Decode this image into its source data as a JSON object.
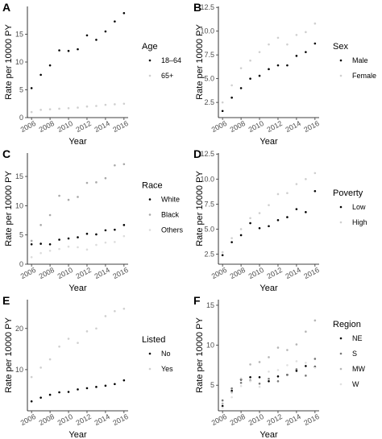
{
  "chart_data": [
    {
      "type": "scatter",
      "panel_label": "A",
      "xlabel": "Year",
      "ylabel": "Rate per 10000 PY",
      "x": [
        2006,
        2007,
        2008,
        2009,
        2010,
        2011,
        2012,
        2013,
        2014,
        2015,
        2016
      ],
      "xticks": [
        2006,
        2008,
        2010,
        2012,
        2014,
        2016
      ],
      "ylim": [
        0,
        20
      ],
      "yticks": [
        0,
        5,
        10,
        15
      ],
      "legend_title": "Age",
      "series": [
        {
          "name": "18–64",
          "color": "#000000",
          "values": [
            5.3,
            7.7,
            9.4,
            12.1,
            12.0,
            12.3,
            14.8,
            14.0,
            15.5,
            17.3,
            18.8
          ]
        },
        {
          "name": "65+",
          "color": "#cfcfcf",
          "values": [
            1.0,
            1.4,
            1.5,
            1.6,
            1.7,
            1.8,
            2.0,
            2.1,
            2.3,
            2.4,
            2.5
          ]
        }
      ]
    },
    {
      "type": "scatter",
      "panel_label": "B",
      "xlabel": "Year",
      "ylabel": "Rate per 10000 PY",
      "x": [
        2006,
        2007,
        2008,
        2009,
        2010,
        2011,
        2012,
        2013,
        2014,
        2015,
        2016
      ],
      "xticks": [
        2006,
        2008,
        2010,
        2012,
        2014,
        2016
      ],
      "ylim": [
        0.9,
        12.6
      ],
      "yticks": [
        2.5,
        5.0,
        7.5,
        10.0,
        12.5
      ],
      "legend_title": "Sex",
      "series": [
        {
          "name": "Male",
          "color": "#000000",
          "values": [
            1.6,
            3.0,
            4.0,
            5.0,
            5.3,
            6.0,
            6.4,
            6.4,
            7.4,
            7.8,
            8.7
          ]
        },
        {
          "name": "Female",
          "color": "#cfcfcf",
          "values": [
            2.5,
            4.3,
            6.1,
            6.9,
            7.8,
            8.6,
            9.3,
            8.6,
            9.6,
            9.9,
            10.8
          ]
        }
      ]
    },
    {
      "type": "scatter",
      "panel_label": "C",
      "xlabel": "Year",
      "ylabel": "Rate per 10000 PY",
      "x": [
        2006,
        2007,
        2008,
        2009,
        2010,
        2011,
        2012,
        2013,
        2014,
        2015,
        2016
      ],
      "xticks": [
        2006,
        2008,
        2010,
        2012,
        2014,
        2016
      ],
      "ylim": [
        0,
        19
      ],
      "yticks": [
        0,
        5,
        10,
        15
      ],
      "legend_title": "Race",
      "series": [
        {
          "name": "White",
          "color": "#000000",
          "values": [
            3.4,
            3.5,
            3.4,
            4.2,
            4.4,
            4.6,
            5.2,
            5.1,
            5.8,
            5.9,
            6.7
          ]
        },
        {
          "name": "Black",
          "color": "#a8a8a8",
          "values": [
            4.0,
            6.7,
            8.4,
            11.7,
            11.0,
            11.5,
            13.9,
            14.0,
            14.7,
            16.9,
            17.1
          ]
        },
        {
          "name": "Others",
          "color": "#dcdcdc",
          "values": [
            1.2,
            1.9,
            2.3,
            2.6,
            3.0,
            2.9,
            2.5,
            3.3,
            3.7,
            3.8,
            4.8
          ]
        }
      ]
    },
    {
      "type": "scatter",
      "panel_label": "D",
      "xlabel": "Year",
      "ylabel": "Rate per 10000 PY",
      "x": [
        2006,
        2007,
        2008,
        2009,
        2010,
        2011,
        2012,
        2013,
        2014,
        2015,
        2016
      ],
      "xticks": [
        2006,
        2008,
        2010,
        2012,
        2014,
        2016
      ],
      "ylim": [
        1.5,
        12.6
      ],
      "yticks": [
        2.5,
        5.0,
        7.5,
        10.0,
        12.5
      ],
      "legend_title": "Poverty",
      "series": [
        {
          "name": "Low",
          "color": "#000000",
          "values": [
            2.4,
            3.7,
            4.4,
            5.6,
            5.1,
            5.3,
            5.9,
            6.2,
            7.0,
            6.7,
            8.8
          ]
        },
        {
          "name": "High",
          "color": "#cfcfcf",
          "values": [
            2.7,
            4.1,
            5.0,
            6.1,
            6.6,
            7.4,
            8.5,
            8.6,
            9.5,
            10.0,
            10.6
          ]
        }
      ]
    },
    {
      "type": "scatter",
      "panel_label": "E",
      "xlabel": "Year",
      "ylabel": "Rate per 10000 PY",
      "x": [
        2006,
        2007,
        2008,
        2009,
        2010,
        2011,
        2012,
        2013,
        2014,
        2015,
        2016
      ],
      "xticks": [
        2006,
        2008,
        2010,
        2012,
        2014,
        2016
      ],
      "ylim": [
        0,
        27
      ],
      "yticks": [
        10,
        20
      ],
      "legend_title": "Listed",
      "series": [
        {
          "name": "No",
          "color": "#000000",
          "values": [
            2.3,
            3.2,
            3.9,
            4.5,
            4.6,
            5.2,
            5.5,
            5.8,
            6.1,
            6.5,
            7.4
          ]
        },
        {
          "name": "Yes",
          "color": "#cfcfcf",
          "values": [
            8.2,
            10.5,
            12.5,
            15.6,
            17.5,
            16.5,
            19.3,
            20.0,
            23.0,
            24.2,
            24.8
          ]
        }
      ]
    },
    {
      "type": "scatter",
      "panel_label": "F",
      "xlabel": "Year",
      "ylabel": "Rate per 10000 PY",
      "x": [
        2006,
        2007,
        2008,
        2009,
        2010,
        2011,
        2012,
        2013,
        2014,
        2015,
        2016
      ],
      "xticks": [
        2006,
        2008,
        2010,
        2012,
        2014,
        2016
      ],
      "ylim": [
        1.8,
        15.7
      ],
      "yticks": [
        5,
        10,
        15
      ],
      "legend_title": "Region",
      "series": [
        {
          "name": "NE",
          "color": "#000000",
          "values": [
            2.4,
            4.3,
            5.7,
            6.0,
            6.0,
            5.5,
            6.1,
            6.3,
            6.8,
            7.4,
            7.3
          ]
        },
        {
          "name": "S",
          "color": "#777777",
          "values": [
            3.1,
            4.6,
            5.3,
            5.6,
            5.2,
            5.8,
            5.5,
            6.3,
            7.0,
            6.2,
            8.3
          ]
        },
        {
          "name": "MW",
          "color": "#b5b5b5",
          "values": [
            2.7,
            4.1,
            5.8,
            7.6,
            7.9,
            8.5,
            9.7,
            9.4,
            10.1,
            11.7,
            13.1
          ]
        },
        {
          "name": "W",
          "color": "#e0e0e0",
          "values": [
            2.2,
            3.5,
            4.9,
            5.5,
            4.8,
            6.7,
            6.9,
            7.5,
            8.0,
            7.8,
            7.2
          ]
        }
      ]
    }
  ]
}
